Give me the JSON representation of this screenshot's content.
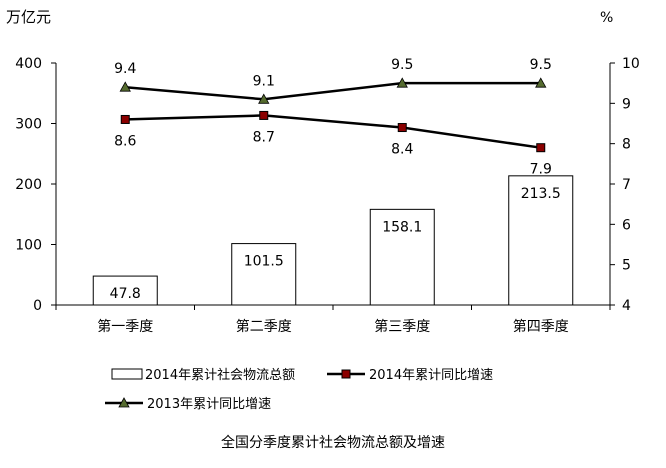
{
  "caption": "全国分季度累计社会物流总额及增速",
  "chart_data": {
    "type": "bar",
    "categories": [
      "第一季度",
      "第二季度",
      "第三季度",
      "第四季度"
    ],
    "y_left": {
      "unit": "万亿元",
      "lim": [
        0,
        400
      ],
      "ticks": [
        0,
        100,
        200,
        300,
        400
      ]
    },
    "y_right": {
      "unit": "%",
      "lim": [
        4,
        10
      ],
      "ticks": [
        4,
        5,
        6,
        7,
        8,
        9,
        10
      ]
    },
    "series": [
      {
        "name": "2014年累计社会物流总额",
        "kind": "bar",
        "axis": "left",
        "values": [
          47.8,
          101.5,
          158.1,
          213.5
        ],
        "labels": [
          "47.8",
          "101.5",
          "158.1",
          "213.5"
        ]
      },
      {
        "name": "2014年累计同比增速",
        "kind": "line",
        "axis": "right",
        "marker": "square",
        "values": [
          8.6,
          8.7,
          8.4,
          7.9
        ],
        "labels": [
          "8.6",
          "8.7",
          "8.4",
          "7.9"
        ]
      },
      {
        "name": "2013年累计同比增速",
        "kind": "line",
        "axis": "right",
        "marker": "triangle",
        "values": [
          9.4,
          9.1,
          9.5,
          9.5
        ],
        "labels": [
          "9.4",
          "9.1",
          "9.5",
          "9.5"
        ]
      }
    ],
    "colors": {
      "bar_fill": "#ffffff",
      "line_2014": "#000000",
      "marker_2014": "#8b0000",
      "line_2013": "#000000",
      "marker_2013": "#556b2f"
    },
    "legend_position": "bottom",
    "grid": false
  }
}
